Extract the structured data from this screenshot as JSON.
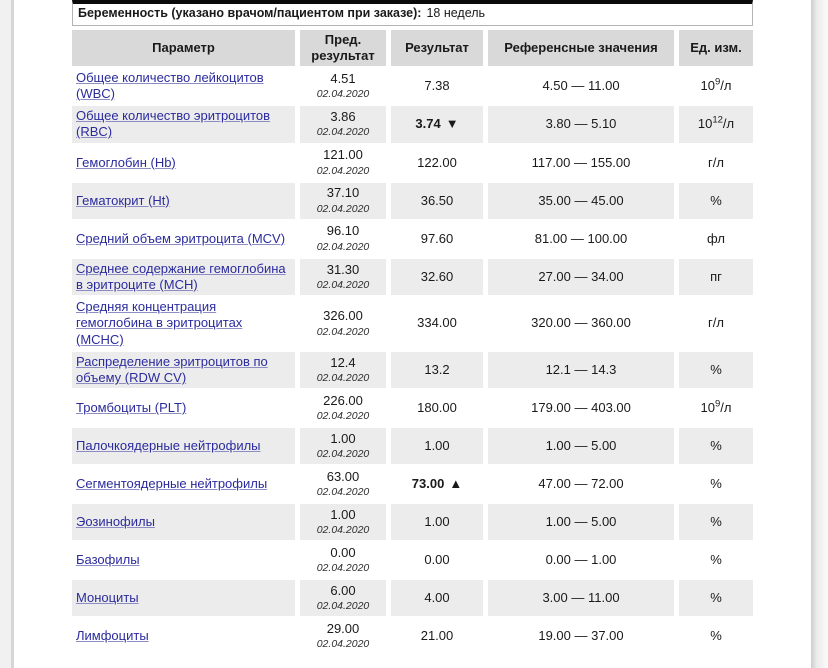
{
  "pregnancy": {
    "label": "Беременность (указано врачом/пациентом при заказе):",
    "value": "18 недель"
  },
  "colors": {
    "header_bg": "#d9d9d9",
    "row_alt_bg": "#ececec",
    "link_blue": "#2b2b9e",
    "top_bar": "#0a0a0a"
  },
  "table": {
    "headers": [
      "Параметр",
      "Пред. результат",
      "Результат",
      "Референсные значения",
      "Ед. изм."
    ],
    "rows": [
      {
        "param": "Общее количество лейкоцитов (WBC)",
        "prev": "4.51",
        "prev_date": "02.04.2020",
        "result": "7.38",
        "flag": "",
        "ref": "4.50 — 11.00",
        "unit_pre": "10",
        "unit_sup": "9",
        "unit_post": "/л"
      },
      {
        "param": "Общее количество эритроцитов (RBC)",
        "prev": "3.86",
        "prev_date": "02.04.2020",
        "result": "3.74",
        "flag": "▼",
        "ref": "3.80 — 5.10",
        "unit_pre": "10",
        "unit_sup": "12",
        "unit_post": "/л"
      },
      {
        "param": "Гемоглобин (Hb)",
        "prev": "121.00",
        "prev_date": "02.04.2020",
        "result": "122.00",
        "flag": "",
        "ref": "117.00 — 155.00",
        "unit_pre": "",
        "unit_sup": "",
        "unit_post": "г/л"
      },
      {
        "param": "Гематокрит (Ht)",
        "prev": "37.10",
        "prev_date": "02.04.2020",
        "result": "36.50",
        "flag": "",
        "ref": "35.00 — 45.00",
        "unit_pre": "",
        "unit_sup": "",
        "unit_post": "%"
      },
      {
        "param": "Средний объем эритроцита (MCV)",
        "prev": "96.10",
        "prev_date": "02.04.2020",
        "result": "97.60",
        "flag": "",
        "ref": "81.00 — 100.00",
        "unit_pre": "",
        "unit_sup": "",
        "unit_post": "фл"
      },
      {
        "param": "Среднее содержание гемоглобина в эритроците (MCH)",
        "prev": "31.30",
        "prev_date": "02.04.2020",
        "result": "32.60",
        "flag": "",
        "ref": "27.00 — 34.00",
        "unit_pre": "",
        "unit_sup": "",
        "unit_post": "пг"
      },
      {
        "param": "Средняя концентрация гемоглобина в эритроцитах (MCHC)",
        "prev": "326.00",
        "prev_date": "02.04.2020",
        "result": "334.00",
        "flag": "",
        "ref": "320.00 — 360.00",
        "unit_pre": "",
        "unit_sup": "",
        "unit_post": "г/л"
      },
      {
        "param": "Распределение эритроцитов по объему (RDW CV)",
        "prev": "12.4",
        "prev_date": "02.04.2020",
        "result": "13.2",
        "flag": "",
        "ref": "12.1 — 14.3",
        "unit_pre": "",
        "unit_sup": "",
        "unit_post": "%"
      },
      {
        "param": "Тромбоциты (PLT)",
        "prev": "226.00",
        "prev_date": "02.04.2020",
        "result": "180.00",
        "flag": "",
        "ref": "179.00 — 403.00",
        "unit_pre": "10",
        "unit_sup": "9",
        "unit_post": "/л"
      },
      {
        "param": "Палочкоядерные нейтрофилы",
        "prev": "1.00",
        "prev_date": "02.04.2020",
        "result": "1.00",
        "flag": "",
        "ref": "1.00 — 5.00",
        "unit_pre": "",
        "unit_sup": "",
        "unit_post": "%"
      },
      {
        "param": "Сегментоядерные нейтрофилы",
        "prev": "63.00",
        "prev_date": "02.04.2020",
        "result": "73.00",
        "flag": "▲",
        "ref": "47.00 — 72.00",
        "unit_pre": "",
        "unit_sup": "",
        "unit_post": "%"
      },
      {
        "param": "Эозинофилы",
        "prev": "1.00",
        "prev_date": "02.04.2020",
        "result": "1.00",
        "flag": "",
        "ref": "1.00 — 5.00",
        "unit_pre": "",
        "unit_sup": "",
        "unit_post": "%"
      },
      {
        "param": "Базофилы",
        "prev": "0.00",
        "prev_date": "02.04.2020",
        "result": "0.00",
        "flag": "",
        "ref": "0.00 — 1.00",
        "unit_pre": "",
        "unit_sup": "",
        "unit_post": "%"
      },
      {
        "param": "Моноциты",
        "prev": "6.00",
        "prev_date": "02.04.2020",
        "result": "4.00",
        "flag": "",
        "ref": "3.00 — 11.00",
        "unit_pre": "",
        "unit_sup": "",
        "unit_post": "%"
      },
      {
        "param": "Лимфоциты",
        "prev": "29.00",
        "prev_date": "02.04.2020",
        "result": "21.00",
        "flag": "",
        "ref": "19.00 — 37.00",
        "unit_pre": "",
        "unit_sup": "",
        "unit_post": "%"
      }
    ]
  }
}
